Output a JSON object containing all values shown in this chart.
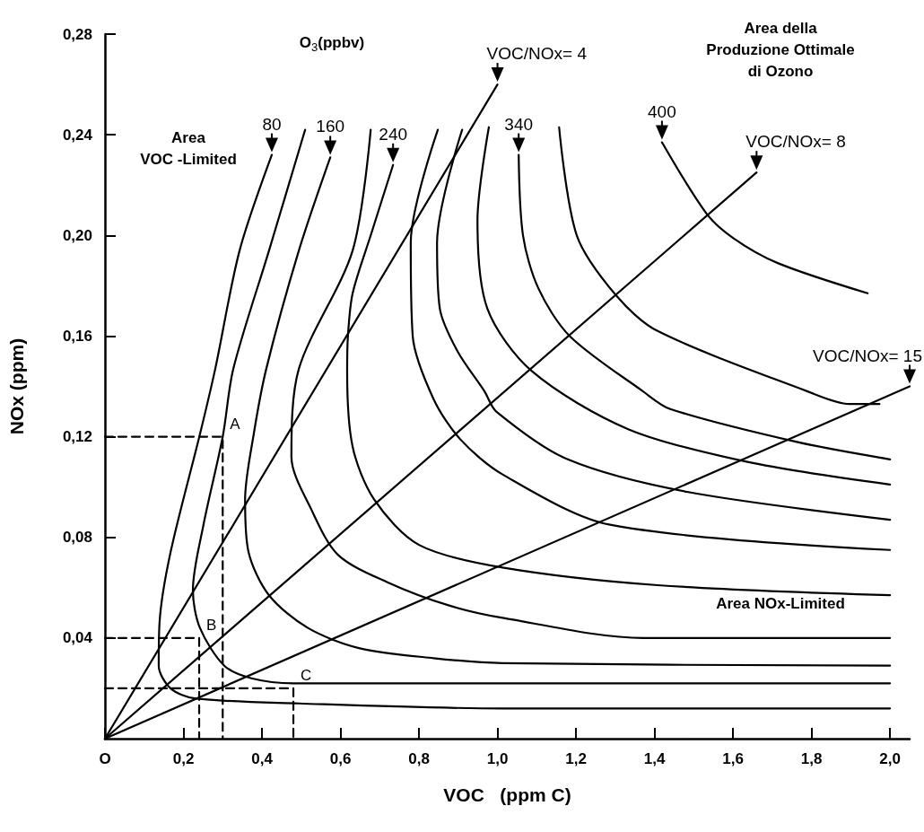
{
  "chart_data": {
    "type": "line",
    "xlabel": "VOC   (ppm C)",
    "ylabel": "NOx (ppm)",
    "xlim": [
      0,
      2.05
    ],
    "ylim": [
      0,
      0.28
    ],
    "xticks": [
      {
        "value": 0,
        "label": "O"
      },
      {
        "value": 0.2,
        "label": "0,2"
      },
      {
        "value": 0.4,
        "label": "0,4"
      },
      {
        "value": 0.6,
        "label": "0,6"
      },
      {
        "value": 0.8,
        "label": "0,8"
      },
      {
        "value": 1,
        "label": "1,0"
      },
      {
        "value": 1.2,
        "label": "1,2"
      },
      {
        "value": 1.4,
        "label": "1,4"
      },
      {
        "value": 1.6,
        "label": "1,6"
      },
      {
        "value": 1.8,
        "label": "1,8"
      },
      {
        "value": 2,
        "label": "2,0"
      }
    ],
    "yticks": [
      {
        "value": 0.04,
        "label": "0,04"
      },
      {
        "value": 0.08,
        "label": "0,08"
      },
      {
        "value": 0.12,
        "label": "0,12"
      },
      {
        "value": 0.16,
        "label": "0,16"
      },
      {
        "value": 0.2,
        "label": "0,20"
      },
      {
        "value": 0.24,
        "label": "0,24"
      },
      {
        "value": 0.28,
        "label": "0,28"
      }
    ],
    "grid": false,
    "legend": false,
    "marker": "none",
    "line_style": "solid",
    "series": [
      {
        "name": "VOC/NOx= 4",
        "color": "#000000",
        "x": [
          0,
          1.0
        ],
        "values": [
          0,
          0.26
        ]
      },
      {
        "name": "VOC/NOx= 8",
        "color": "#000000",
        "x": [
          0,
          1.66
        ],
        "values": [
          0,
          0.225
        ]
      },
      {
        "name": "VOC/NOx= 15",
        "color": "#000000",
        "x": [
          0,
          2.05
        ],
        "values": [
          0,
          0.14
        ]
      },
      {
        "name": "80",
        "color": "#000000",
        "x": [
          0.425,
          0.343,
          0.281,
          0.242,
          0.167,
          0.139,
          0.137,
          0.167,
          0.229,
          0.494,
          1.013,
          2.0
        ],
        "values": [
          0.232,
          0.194,
          0.147,
          0.121,
          0.074,
          0.046,
          0.029,
          0.02,
          0.016,
          0.014,
          0.012,
          0.012
        ]
      },
      {
        "color": "#000000",
        "x": [
          0.51,
          0.418,
          0.327,
          0.3,
          0.251,
          0.224,
          0.242,
          0.304,
          0.373,
          0.48,
          2.0
        ],
        "values": [
          0.242,
          0.194,
          0.147,
          0.12,
          0.085,
          0.059,
          0.044,
          0.029,
          0.024,
          0.022,
          0.022
        ]
      },
      {
        "name": "160",
        "color": "#000000",
        "x": [
          0.574,
          0.494,
          0.411,
          0.379,
          0.357,
          0.366,
          0.418,
          0.517,
          0.647,
          0.837,
          1.013,
          2.0
        ],
        "values": [
          0.231,
          0.194,
          0.147,
          0.121,
          0.095,
          0.074,
          0.057,
          0.044,
          0.036,
          0.032,
          0.03,
          0.029
        ]
      },
      {
        "color": "#000000",
        "x": [
          0.677,
          0.631,
          0.494,
          0.475,
          0.526,
          0.594,
          0.722,
          0.875,
          1.013,
          1.371,
          2.0
        ],
        "values": [
          0.242,
          0.194,
          0.147,
          0.112,
          0.091,
          0.073,
          0.062,
          0.053,
          0.048,
          0.04,
          0.04
        ]
      },
      {
        "name": "240",
        "color": "#000000",
        "x": [
          0.734,
          0.677,
          0.631,
          0.619,
          0.617,
          0.631,
          0.686,
          0.8,
          1.013,
          1.408,
          2.0
        ],
        "values": [
          0.228,
          0.2,
          0.177,
          0.16,
          0.146,
          0.116,
          0.095,
          0.077,
          0.068,
          0.061,
          0.057
        ]
      },
      {
        "color": "#000000",
        "x": [
          0.848,
          0.779,
          0.784,
          0.837,
          0.905,
          1.013,
          1.287,
          2.0
        ],
        "values": [
          0.242,
          0.197,
          0.16,
          0.135,
          0.119,
          0.105,
          0.085,
          0.075
        ]
      },
      {
        "color": "#000000",
        "x": [
          0.91,
          0.846,
          0.853,
          0.898,
          0.967,
          0.997,
          1.179,
          1.486,
          2.0
        ],
        "values": [
          0.242,
          0.197,
          0.171,
          0.154,
          0.138,
          0.13,
          0.111,
          0.098,
          0.087
        ]
      },
      {
        "color": "#000000",
        "x": [
          0.978,
          0.949,
          0.974,
          1.088,
          1.333,
          1.637,
          2.0
        ],
        "values": [
          0.243,
          0.206,
          0.171,
          0.146,
          0.123,
          0.11,
          0.101
        ]
      },
      {
        "name": "340",
        "color": "#000000",
        "x": [
          1.054,
          1.065,
          1.104,
          1.184,
          1.371,
          1.44,
          1.76,
          2.0
        ],
        "values": [
          0.232,
          0.2,
          0.179,
          0.16,
          0.138,
          0.131,
          0.118,
          0.111
        ]
      },
      {
        "color": "#000000",
        "x": [
          1.157,
          1.202,
          1.303,
          1.408,
          1.79,
          1.897,
          1.973
        ],
        "values": [
          0.243,
          0.2,
          0.176,
          0.162,
          0.138,
          0.133,
          0.133
        ]
      },
      {
        "name": "400",
        "color": "#000000",
        "x": [
          1.419,
          1.531,
          1.6,
          1.714,
          1.943
        ],
        "values": [
          0.237,
          0.209,
          0.199,
          0.189,
          0.177
        ]
      },
      {
        "color": "#000000",
        "line_style": "dashed",
        "x": [
          0,
          0.3,
          0.3
        ],
        "values": [
          0.12,
          0.12,
          0
        ]
      },
      {
        "color": "#000000",
        "line_style": "dashed",
        "x": [
          0,
          0.24,
          0.24
        ],
        "values": [
          0.04,
          0.04,
          0
        ]
      },
      {
        "color": "#000000",
        "line_style": "dashed",
        "x": [
          0,
          0.48,
          0.48
        ],
        "values": [
          0.02,
          0.02,
          0
        ]
      }
    ],
    "annotations": [
      "O$_{3}$(ppbv)",
      "Area\nVOC -Limited",
      "Area della\nProduzione Ottimale\ndi Ozono",
      "Area NOx-Limited",
      {
        "text": "A",
        "x": 0.3,
        "y": 0.12
      },
      {
        "text": "B",
        "x": 0.24,
        "y": 0.04
      },
      {
        "text": "C",
        "x": 0.48,
        "y": 0.02
      }
    ]
  }
}
